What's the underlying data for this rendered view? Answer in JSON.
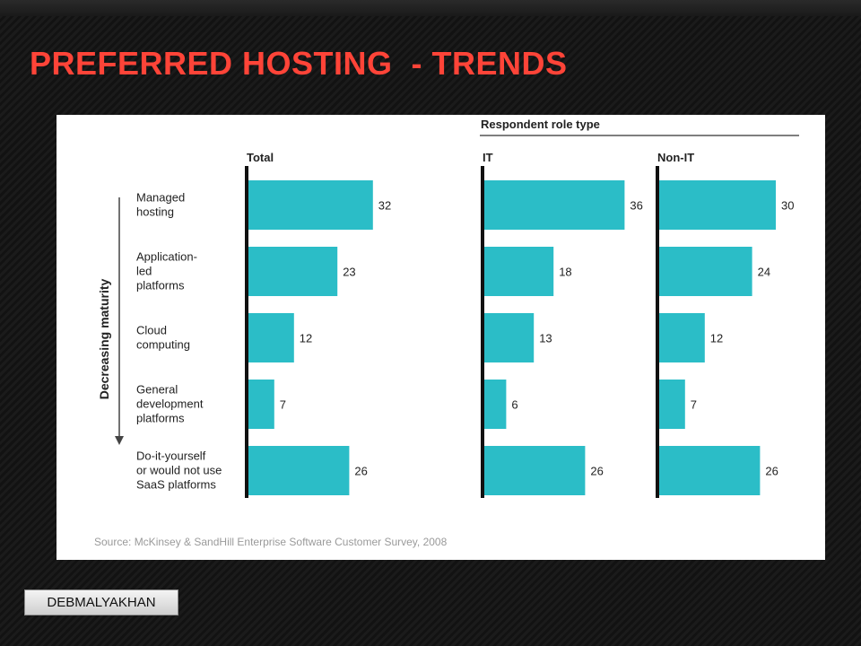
{
  "slide": {
    "title": "PREFERRED HOSTING  - TRENDS",
    "author": "DEBMALYAKHAN"
  },
  "chart_data": {
    "type": "bar",
    "orientation": "horizontal",
    "group_title": "Respondent role type",
    "axis_label": "Decreasing maturity",
    "categories": [
      [
        "Managed",
        "hosting"
      ],
      [
        "Application-",
        "led",
        "platforms"
      ],
      [
        "Cloud",
        "computing"
      ],
      [
        "General",
        "development",
        "platforms"
      ],
      [
        "Do-it-yourself",
        "or would not use",
        "SaaS platforms"
      ]
    ],
    "panels": [
      {
        "name": "Total",
        "values": [
          32,
          23,
          12,
          7,
          26
        ]
      },
      {
        "name": "IT",
        "values": [
          36,
          18,
          13,
          6,
          26
        ]
      },
      {
        "name": "Non-IT",
        "values": [
          30,
          24,
          12,
          7,
          26
        ]
      }
    ],
    "source": "Source: McKinsey & SandHill Enterprise Software Customer Survey, 2008",
    "colors": {
      "bar": "#2bbdc7",
      "axis": "#111111",
      "text": "#222222",
      "source": "#9a9a9a"
    }
  }
}
